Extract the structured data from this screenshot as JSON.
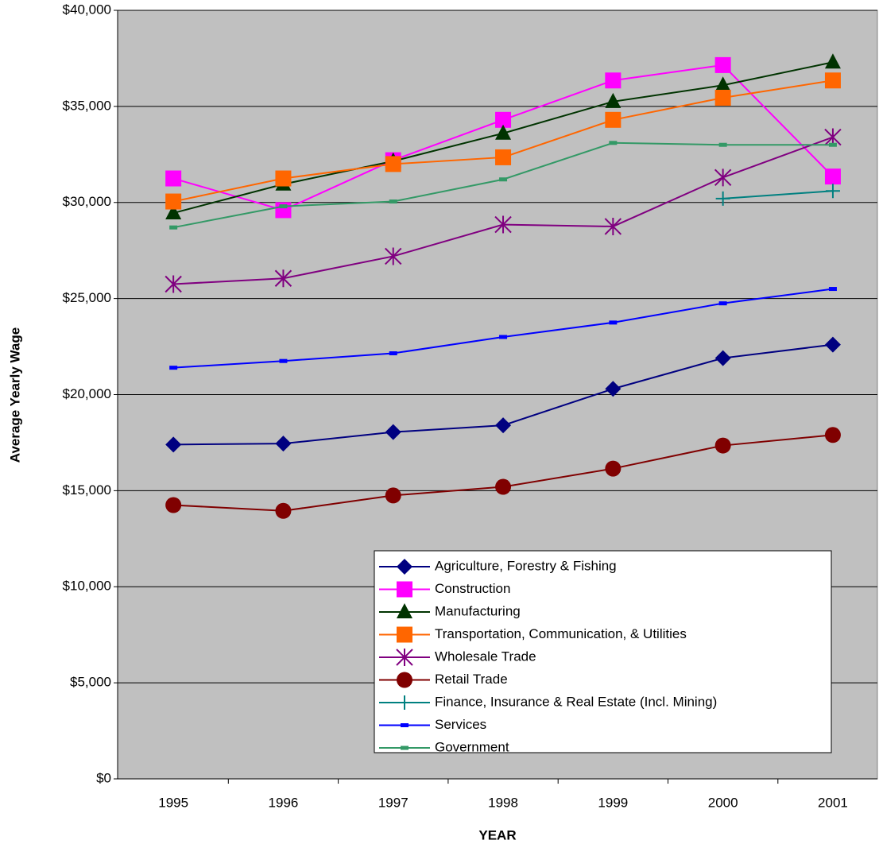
{
  "chart_data": {
    "type": "line",
    "x_label": "YEAR",
    "y_label": "Average Yearly Wage",
    "categories": [
      "1995",
      "1996",
      "1997",
      "1998",
      "1999",
      "2000",
      "2001"
    ],
    "ylim": [
      0,
      40000
    ],
    "yticks": [
      {
        "value": 0,
        "label": "$0"
      },
      {
        "value": 5000,
        "label": "$5,000"
      },
      {
        "value": 10000,
        "label": "$10,000"
      },
      {
        "value": 15000,
        "label": "$15,000"
      },
      {
        "value": 20000,
        "label": "$20,000"
      },
      {
        "value": 25000,
        "label": "$25,000"
      },
      {
        "value": 30000,
        "label": "$30,000"
      },
      {
        "value": 35000,
        "label": "$35,000"
      },
      {
        "value": 40000,
        "label": "$40,000"
      }
    ],
    "grid": true,
    "legend": "lower right",
    "series": [
      {
        "name": "Agriculture, Forestry & Fishing",
        "color": "#000080",
        "marker": "diamond",
        "values": [
          17400,
          17450,
          18050,
          18400,
          20300,
          21900,
          22600
        ]
      },
      {
        "name": "Construction",
        "color": "#ff00ff",
        "marker": "square",
        "values": [
          31250,
          29600,
          32200,
          34300,
          36350,
          37150,
          31350
        ]
      },
      {
        "name": "Manufacturing",
        "color": "#003300",
        "marker": "triangle",
        "values": [
          29450,
          30950,
          32150,
          33600,
          35250,
          36100,
          37300
        ]
      },
      {
        "name": "Transportation, Communication, & Utilities",
        "color": "#ff6600",
        "marker": "square",
        "values": [
          30050,
          31250,
          32000,
          32350,
          34300,
          35450,
          36350
        ]
      },
      {
        "name": "Wholesale Trade",
        "color": "#800080",
        "marker": "star",
        "values": [
          25750,
          26050,
          27200,
          28850,
          28750,
          31300,
          33400
        ]
      },
      {
        "name": "Retail Trade",
        "color": "#800000",
        "marker": "circle",
        "values": [
          14250,
          13950,
          14750,
          15200,
          16150,
          17350,
          17900
        ]
      },
      {
        "name": "Finance, Insurance & Real Estate (Incl. Mining)",
        "color": "#008080",
        "marker": "plus",
        "values": [
          null,
          null,
          null,
          null,
          null,
          30200,
          30600
        ]
      },
      {
        "name": "Services",
        "color": "#0000ff",
        "marker": "dash",
        "values": [
          21400,
          21750,
          22150,
          23000,
          23750,
          24750,
          25500
        ]
      },
      {
        "name": "Government",
        "color": "#339966",
        "marker": "dash",
        "values": [
          28700,
          29800,
          30050,
          31200,
          33100,
          33000,
          33000
        ]
      }
    ]
  }
}
